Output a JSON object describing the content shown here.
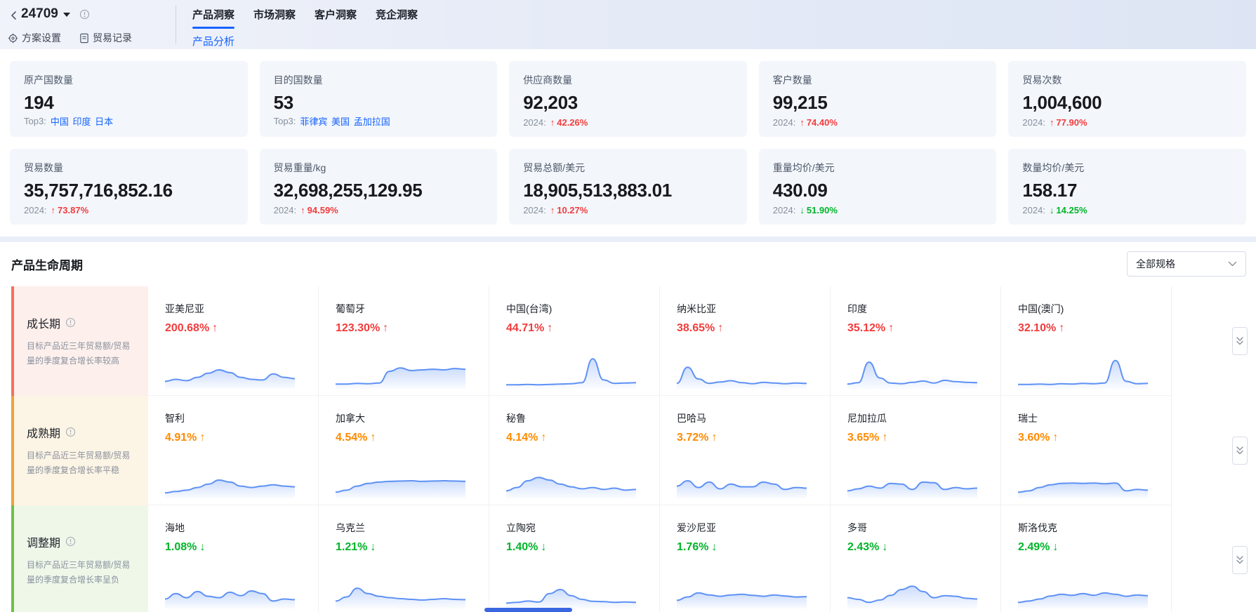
{
  "accent_color": "#1664ff",
  "up_color": "#f23c3c",
  "down_color": "#00b42a",
  "mature_color": "#ff8a00",
  "header": {
    "project_id": "24709",
    "scheme_settings": "方案设置",
    "trade_records": "贸易记录",
    "tabs": [
      "产品洞察",
      "市场洞察",
      "客户洞察",
      "竞企洞察"
    ],
    "active_tab": "产品洞察",
    "sub_tab": "产品分析"
  },
  "stats": {
    "row1": [
      {
        "label": "原产国数量",
        "value": "194",
        "top3_label": "Top3:",
        "top3": [
          "中国",
          "印度",
          "日本"
        ]
      },
      {
        "label": "目的国数量",
        "value": "53",
        "top3_label": "Top3:",
        "top3": [
          "菲律宾",
          "美国",
          "孟加拉国"
        ]
      },
      {
        "label": "供应商数量",
        "value": "92,203",
        "year_label": "2024:",
        "change": "42.26%",
        "direction": "up"
      },
      {
        "label": "客户数量",
        "value": "99,215",
        "year_label": "2024:",
        "change": "74.40%",
        "direction": "up"
      },
      {
        "label": "贸易次数",
        "value": "1,004,600",
        "year_label": "2024:",
        "change": "77.90%",
        "direction": "up"
      }
    ],
    "row2": [
      {
        "label": "贸易数量",
        "value": "35,757,716,852.16",
        "year_label": "2024:",
        "change": "73.87%",
        "direction": "up"
      },
      {
        "label": "贸易重量/kg",
        "value": "32,698,255,129.95",
        "year_label": "2024:",
        "change": "94.59%",
        "direction": "up"
      },
      {
        "label": "贸易总额/美元",
        "value": "18,905,513,883.01",
        "year_label": "2024:",
        "change": "10.27%",
        "direction": "up"
      },
      {
        "label": "重量均价/美元",
        "value": "430.09",
        "year_label": "2024:",
        "change": "51.90%",
        "direction": "down"
      },
      {
        "label": "数量均价/美元",
        "value": "158.17",
        "year_label": "2024:",
        "change": "14.25%",
        "direction": "down"
      }
    ]
  },
  "lifecycle": {
    "title": "产品生命周期",
    "filter_value": "全部规格",
    "rows": [
      {
        "stage": "成长期",
        "description": "目标产品近三年贸易额/贸易量的季度复合增长率较高",
        "items": [
          {
            "country": "亚美尼亚",
            "change": "200.68%",
            "direction": "up",
            "spark": [
              18,
              24,
              20,
              30,
              42,
              52,
              44,
              30,
              24,
              22,
              40,
              30,
              26
            ]
          },
          {
            "country": "葡萄牙",
            "change": "123.30%",
            "direction": "up",
            "spark": [
              10,
              10,
              12,
              11,
              13,
              48,
              58,
              50,
              52,
              54,
              52,
              56,
              54
            ]
          },
          {
            "country": "中国(台湾)",
            "change": "44.71%",
            "direction": "up",
            "spark": [
              8,
              8,
              9,
              8,
              9,
              10,
              11,
              14,
              85,
              22,
              12,
              13,
              14
            ]
          },
          {
            "country": "纳米比亚",
            "change": "38.65%",
            "direction": "up",
            "spark": [
              12,
              60,
              25,
              12,
              16,
              20,
              14,
              11,
              15,
              13,
              11,
              13,
              12
            ]
          },
          {
            "country": "印度",
            "change": "35.12%",
            "direction": "up",
            "spark": [
              10,
              14,
              75,
              28,
              13,
              11,
              15,
              19,
              13,
              21,
              17,
              15,
              14
            ]
          },
          {
            "country": "中国(澳门)",
            "change": "32.10%",
            "direction": "up",
            "spark": [
              9,
              9,
              10,
              9,
              11,
              10,
              12,
              11,
              13,
              80,
              18,
              11,
              12
            ]
          }
        ]
      },
      {
        "stage": "成熟期",
        "description": "目标产品近三年贸易额/贸易量的季度复合增长率平稳",
        "items": [
          {
            "country": "智利",
            "change": "4.91%",
            "direction": "up",
            "spark": [
              12,
              16,
              20,
              28,
              38,
              50,
              44,
              32,
              28,
              32,
              36,
              32,
              30
            ]
          },
          {
            "country": "加拿大",
            "change": "4.54%",
            "direction": "up",
            "spark": [
              14,
              20,
              32,
              40,
              44,
              46,
              47,
              48,
              46,
              47,
              48,
              47,
              46
            ]
          },
          {
            "country": "秘鲁",
            "change": "4.14%",
            "direction": "up",
            "spark": [
              18,
              28,
              48,
              58,
              50,
              38,
              30,
              24,
              28,
              22,
              26,
              20,
              22
            ]
          },
          {
            "country": "巴哈马",
            "change": "3.72%",
            "direction": "up",
            "spark": [
              32,
              48,
              28,
              44,
              24,
              38,
              30,
              30,
              44,
              38,
              22,
              28,
              26
            ]
          },
          {
            "country": "尼加拉瓜",
            "change": "3.65%",
            "direction": "up",
            "spark": [
              18,
              24,
              32,
              26,
              40,
              38,
              22,
              44,
              42,
              22,
              28,
              24,
              26
            ]
          },
          {
            "country": "瑞士",
            "change": "3.60%",
            "direction": "up",
            "spark": [
              14,
              18,
              28,
              36,
              40,
              41,
              40,
              41,
              39,
              41,
              18,
              22,
              20
            ]
          }
        ]
      },
      {
        "stage": "调整期",
        "description": "目标产品近三年贸易额/贸易量的季度复合增长率呈负",
        "items": [
          {
            "country": "海地",
            "change": "1.08%",
            "direction": "down",
            "spark": [
              24,
              40,
              28,
              46,
              32,
              28,
              44,
              34,
              48,
              40,
              18,
              24,
              22
            ]
          },
          {
            "country": "乌克兰",
            "change": "1.21%",
            "direction": "down",
            "spark": [
              18,
              30,
              56,
              40,
              32,
              28,
              25,
              23,
              21,
              23,
              25,
              23,
              22
            ]
          },
          {
            "country": "立陶宛",
            "change": "1.40%",
            "direction": "down",
            "spark": [
              12,
              14,
              18,
              15,
              40,
              52,
              34,
              23,
              17,
              16,
              14,
              15,
              14
            ]
          },
          {
            "country": "爱沙尼亚",
            "change": "1.76%",
            "direction": "down",
            "spark": [
              20,
              30,
              42,
              36,
              32,
              36,
              38,
              35,
              32,
              36,
              33,
              30,
              31
            ]
          },
          {
            "country": "多哥",
            "change": "2.43%",
            "direction": "down",
            "spark": [
              28,
              23,
              14,
              21,
              35,
              52,
              62,
              46,
              28,
              34,
              32,
              26,
              24
            ]
          },
          {
            "country": "斯洛伐克",
            "change": "2.49%",
            "direction": "down",
            "spark": [
              14,
              18,
              24,
              33,
              38,
              35,
              40,
              35,
              42,
              38,
              32,
              36,
              34
            ]
          }
        ]
      }
    ]
  }
}
